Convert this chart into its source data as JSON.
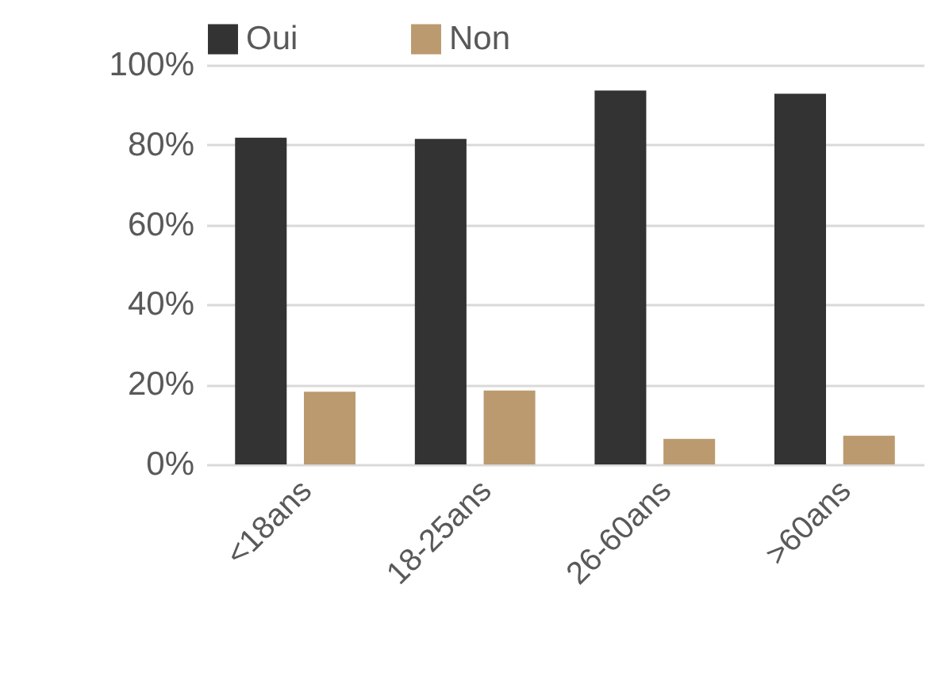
{
  "chart_data": {
    "type": "bar",
    "categories": [
      "<18ans",
      "18-25ans",
      "26-60ans",
      ">60ans"
    ],
    "series": [
      {
        "name": "Oui",
        "color": "#333333",
        "values": [
          81.8,
          81.5,
          93.6,
          92.8
        ]
      },
      {
        "name": "Non",
        "color": "#bc9a6f",
        "values": [
          18.2,
          18.5,
          6.4,
          7.2
        ]
      }
    ],
    "ylim": [
      0,
      100
    ],
    "yticks": [
      {
        "value": 0,
        "label": "0%"
      },
      {
        "value": 20,
        "label": "20%"
      },
      {
        "value": 40,
        "label": "40%"
      },
      {
        "value": 60,
        "label": "60%"
      },
      {
        "value": 80,
        "label": "80%"
      },
      {
        "value": 100,
        "label": "100%"
      }
    ],
    "grid": "y",
    "legend": "top"
  }
}
